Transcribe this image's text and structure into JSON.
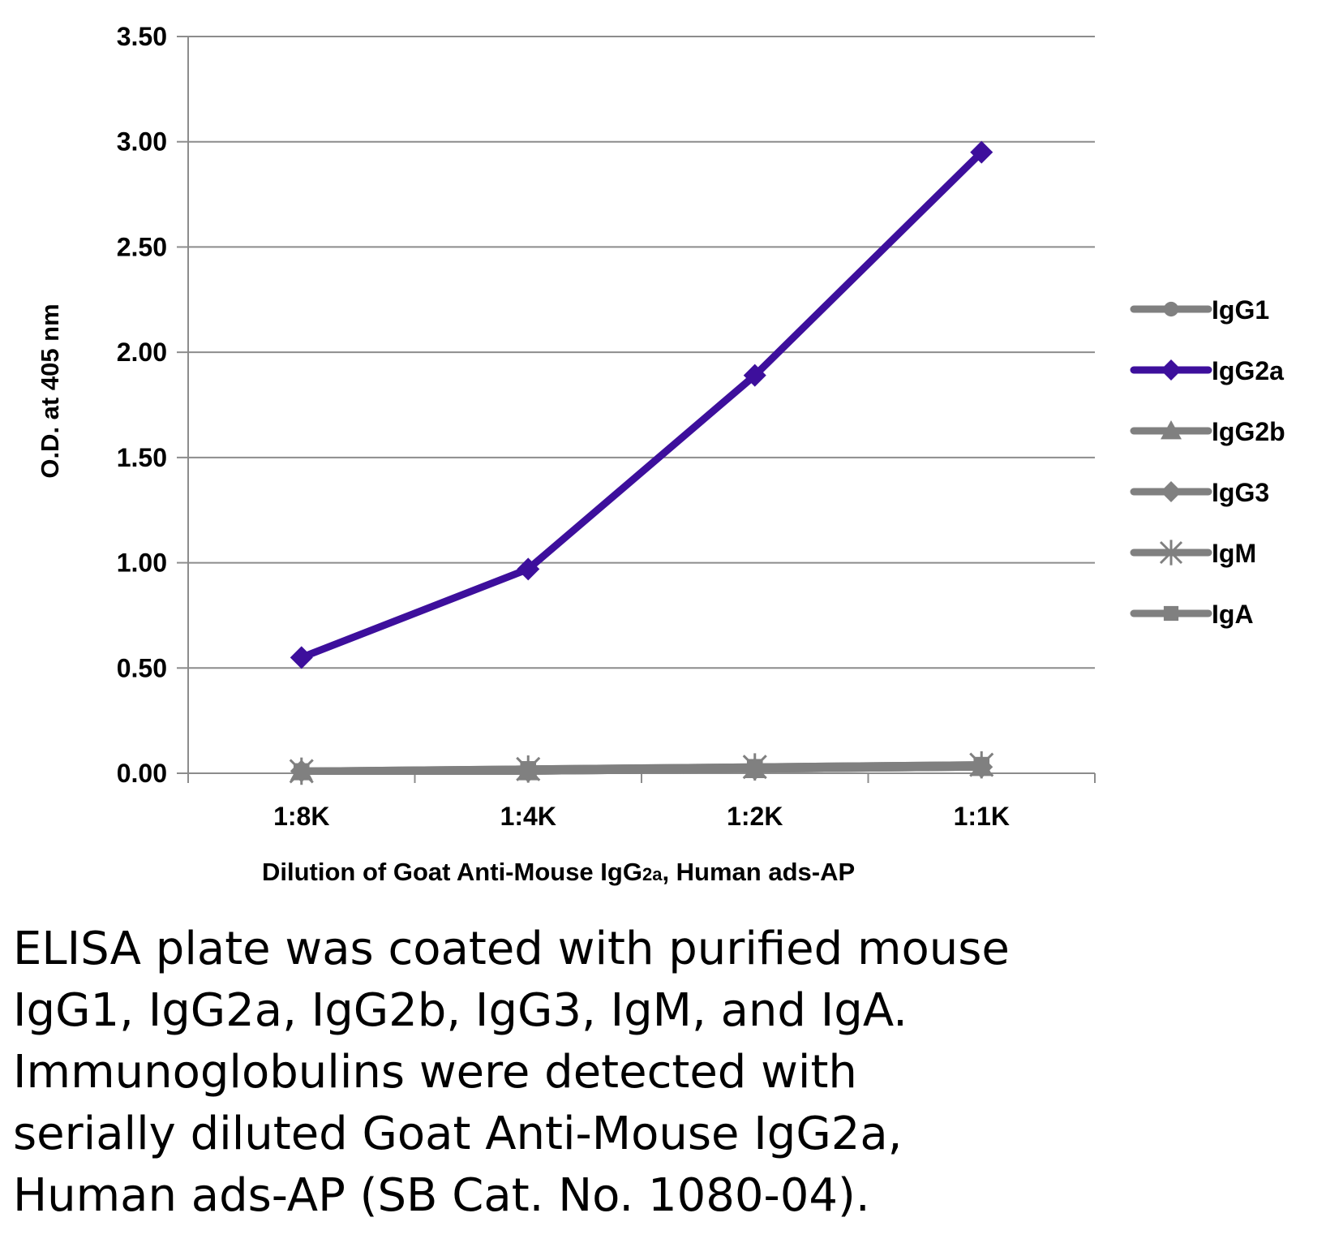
{
  "chart_data": {
    "type": "line",
    "categories": [
      "1:8K",
      "1:4K",
      "1:2K",
      "1:1K"
    ],
    "xlabel": "Dilution of Goat Anti-Mouse IgG2a, Human ads-AP",
    "xlabel_parts": {
      "main": "Dilution of Goat Anti-Mouse IgG",
      "sub": "2a",
      "rest": ", Human ads-AP"
    },
    "ylabel": "O.D. at 405 nm",
    "ylim": [
      0,
      3.5
    ],
    "yticks": [
      "0.00",
      "0.50",
      "1.00",
      "1.50",
      "2.00",
      "2.50",
      "3.00",
      "3.50"
    ],
    "grid": true,
    "legend_position": "right",
    "series": [
      {
        "name": "IgG1",
        "values": [
          0.01,
          0.01,
          0.02,
          0.03
        ],
        "color": "#808080",
        "marker": "circle"
      },
      {
        "name": "IgG2a",
        "values": [
          0.55,
          0.97,
          1.89,
          2.95
        ],
        "color": "#3d0f9c",
        "marker": "diamond"
      },
      {
        "name": "IgG2b",
        "values": [
          0.01,
          0.01,
          0.02,
          0.03
        ],
        "color": "#808080",
        "marker": "triangle"
      },
      {
        "name": "IgG3",
        "values": [
          0.01,
          0.01,
          0.02,
          0.03
        ],
        "color": "#808080",
        "marker": "diamond"
      },
      {
        "name": "IgM",
        "values": [
          0.01,
          0.02,
          0.03,
          0.04
        ],
        "color": "#808080",
        "marker": "star"
      },
      {
        "name": "IgA",
        "values": [
          0.01,
          0.02,
          0.03,
          0.04
        ],
        "color": "#808080",
        "marker": "square"
      }
    ]
  },
  "caption": {
    "lines": [
      "ELISA plate was coated with purified mouse",
      "IgG1, IgG2a, IgG2b, IgG3, IgM, and IgA.",
      "Immunoglobulins were detected with",
      "serially diluted Goat Anti-Mouse IgG2a,",
      "Human ads-AP (SB Cat. No. 1080-04)."
    ]
  }
}
